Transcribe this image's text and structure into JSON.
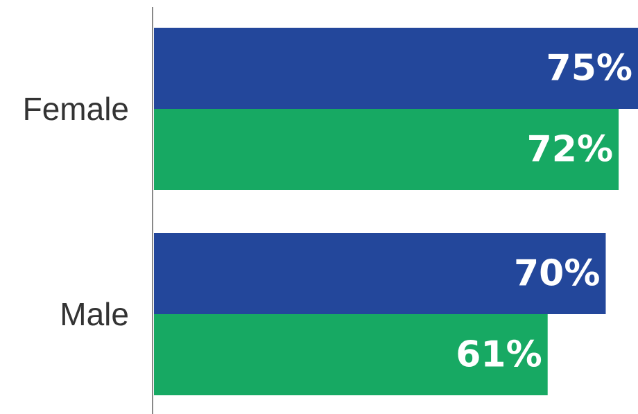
{
  "chart_data": {
    "type": "bar",
    "orientation": "horizontal",
    "categories": [
      "Female",
      "Male"
    ],
    "series": [
      {
        "color": "#23479b",
        "values": [
          75,
          70
        ],
        "labels": [
          "75%",
          "70%"
        ]
      },
      {
        "color": "#17a963",
        "values": [
          72,
          61
        ],
        "labels": [
          "72%",
          "61%"
        ]
      }
    ],
    "xlim": [
      0,
      75
    ],
    "axis_color": "#888888",
    "grid": false,
    "legend": "none",
    "title": "",
    "xlabel": "",
    "ylabel": ""
  }
}
